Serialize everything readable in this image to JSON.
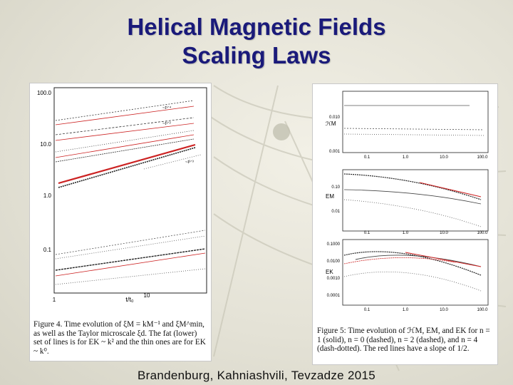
{
  "title": {
    "line1": "Helical Magnetic Fields",
    "line2": "Scaling Laws"
  },
  "footer": "Brandenburg, Kahniashvili, Tevzadze 2015",
  "figure4": {
    "y_ticks": [
      "100.0",
      "10.0",
      "1.0",
      "0.1"
    ],
    "x_ticks": [
      "1",
      "10"
    ],
    "xlabel": "t/t₀",
    "annotations": [
      "~t¹ᐟ⁴",
      "~t¹ᐟ²",
      "~t²ᐟ³"
    ],
    "caption_label": "Figure 4.",
    "caption_text": " Time evolution of ξM = kM⁻¹ and ξM^min, as well as the Taylor microscale ξd. The fat (lower) set of lines is for EK ~ k² and the thin ones are for EK ~ k⁰."
  },
  "figure5": {
    "panels": [
      {
        "ylabel": "ℋM",
        "y_ticks": [
          "0.010",
          "0.001"
        ],
        "x_ticks": [
          "0.1",
          "1.0",
          "10.0",
          "100.0"
        ]
      },
      {
        "ylabel": "EM",
        "y_ticks": [
          "0.10",
          "0.01"
        ],
        "x_ticks": [
          "0.1",
          "1.0",
          "10.0",
          "100.0"
        ]
      },
      {
        "ylabel": "EK",
        "y_ticks": [
          "0.1000",
          "0.0100",
          "0.0010",
          "0.0001"
        ],
        "x_ticks": [
          "0.1",
          "1.0",
          "10.0",
          "100.0"
        ]
      }
    ],
    "caption_label": "Figure 5:",
    "caption_text": " Time evolution of ℋM, EM, and EK for n = 1 (solid), n = 0 (dashed), n = 2 (dashed), and n = 4 (dash-dotted). The red lines have a slope of 1/2."
  },
  "colors": {
    "title": "#1a1a7a",
    "red_fit": "#cc2222"
  }
}
